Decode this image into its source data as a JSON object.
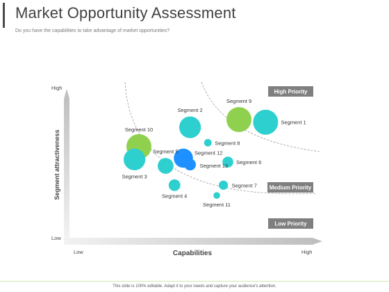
{
  "header": {
    "title": "Market Opportunity Assessment",
    "subtitle": "Do you have the capabilities to take advantage of market opportunities?"
  },
  "footer": {
    "text": "This slide is 100% editable. Adapt it to your needs and capture your audience's attention."
  },
  "colors": {
    "teal": "#2ecfcf",
    "green": "#8fd14f",
    "blue": "#1e90ff",
    "priority_box": "#7f7f7f"
  },
  "chart_data": {
    "type": "scatter",
    "title": "",
    "xlabel": "Capabilities",
    "ylabel": "Segment attractiveness",
    "xlim": [
      0,
      10
    ],
    "ylim": [
      0,
      10
    ],
    "x_tick_labels": {
      "low": "Low",
      "high": "High"
    },
    "y_tick_labels": {
      "low": "Low",
      "high": "High"
    },
    "priority_bands": [
      {
        "label": "High Priority"
      },
      {
        "label": "Medium Priority"
      },
      {
        "label": "Low Priority"
      }
    ],
    "points": [
      {
        "label": "Segment 1",
        "x": 8.2,
        "y": 7.8,
        "size": 3.0,
        "color": "teal"
      },
      {
        "label": "Segment 2",
        "x": 4.8,
        "y": 7.4,
        "size": 2.6,
        "color": "teal"
      },
      {
        "label": "Segment 3",
        "x": 2.3,
        "y": 4.9,
        "size": 2.6,
        "color": "teal"
      },
      {
        "label": "Segment 4",
        "x": 4.1,
        "y": 2.9,
        "size": 1.4,
        "color": "teal"
      },
      {
        "label": "Segment 5",
        "x": 3.7,
        "y": 4.4,
        "size": 1.9,
        "color": "teal"
      },
      {
        "label": "Segment 6",
        "x": 6.5,
        "y": 4.7,
        "size": 1.3,
        "color": "teal"
      },
      {
        "label": "Segment 7",
        "x": 6.3,
        "y": 2.9,
        "size": 1.1,
        "color": "teal"
      },
      {
        "label": "Segment 8",
        "x": 5.6,
        "y": 6.2,
        "size": 0.9,
        "color": "teal"
      },
      {
        "label": "Segment 9",
        "x": 7.0,
        "y": 8.0,
        "size": 3.0,
        "color": "green"
      },
      {
        "label": "Segment 10",
        "x": 2.5,
        "y": 5.9,
        "size": 3.0,
        "color": "green"
      },
      {
        "label": "Segment 11",
        "x": 6.0,
        "y": 2.1,
        "size": 0.8,
        "color": "teal"
      },
      {
        "label": "Segment 12",
        "x": 4.5,
        "y": 5.0,
        "size": 2.3,
        "color": "blue"
      },
      {
        "label": "Segment 13",
        "x": 4.8,
        "y": 4.5,
        "size": 1.4,
        "color": "blue"
      }
    ]
  }
}
